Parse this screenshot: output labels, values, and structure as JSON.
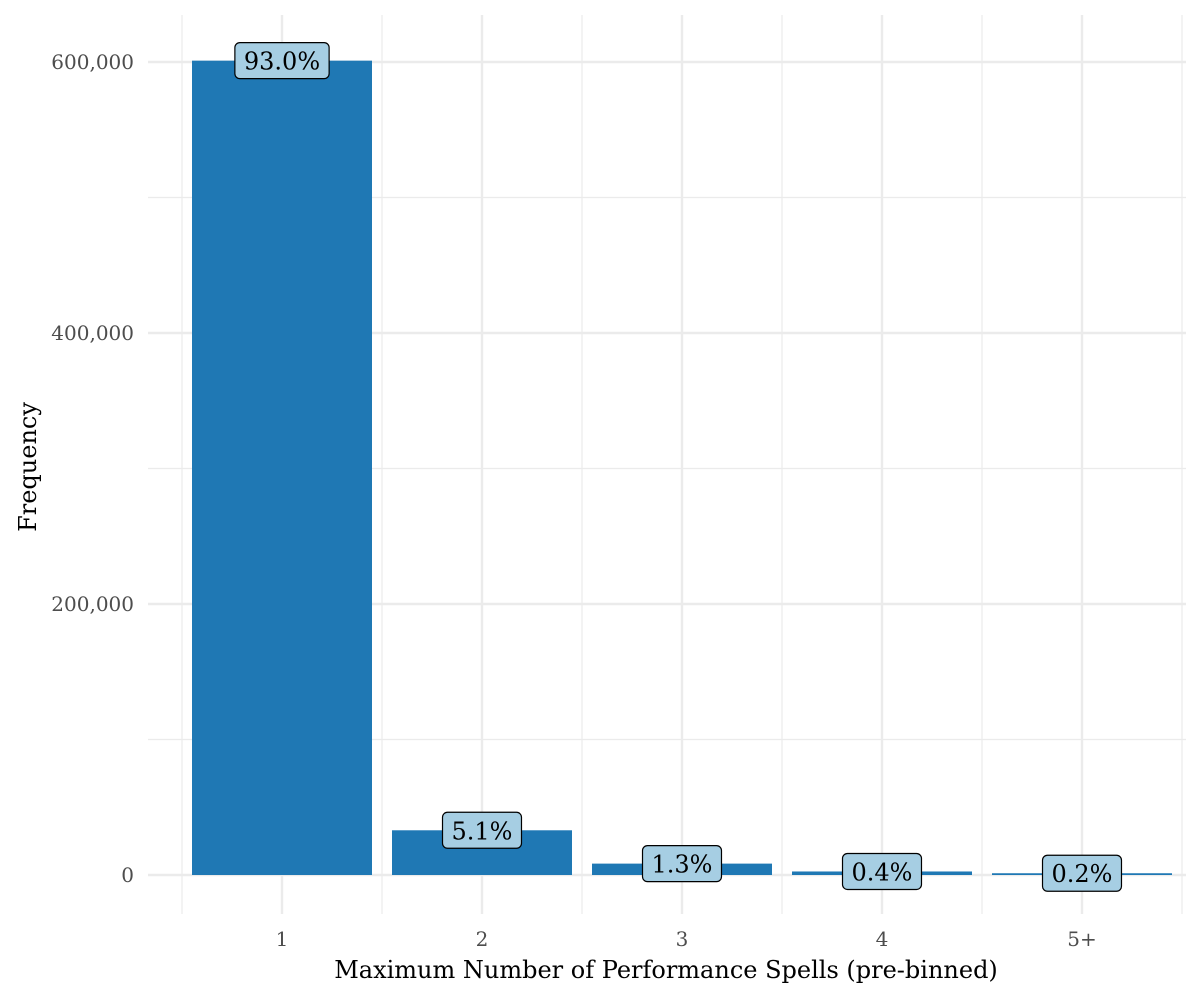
{
  "chart_data": {
    "type": "bar",
    "categories": [
      "1",
      "2",
      "3",
      "4",
      "5+"
    ],
    "values": [
      601000,
      33000,
      8400,
      2600,
      1300
    ],
    "data_labels": [
      "93.0%",
      "5.1%",
      "1.3%",
      "0.4%",
      "0.2%"
    ],
    "title": "",
    "xlabel": "Maximum Number of Performance Spells (pre-binned)",
    "ylabel": "Frequency",
    "ylim": [
      0,
      632000
    ],
    "y_ticks": [
      0,
      200000,
      400000,
      600000
    ],
    "y_tick_labels": [
      "0",
      "200,000",
      "400,000",
      "600,000"
    ],
    "y_minor_ticks": [
      100000,
      300000,
      500000
    ],
    "grid": true,
    "legend": "none",
    "colors": {
      "bar": "#1f78b4",
      "label_fill": "#a6cee3",
      "label_border": "#000000",
      "grid": "#ebebeb"
    }
  }
}
